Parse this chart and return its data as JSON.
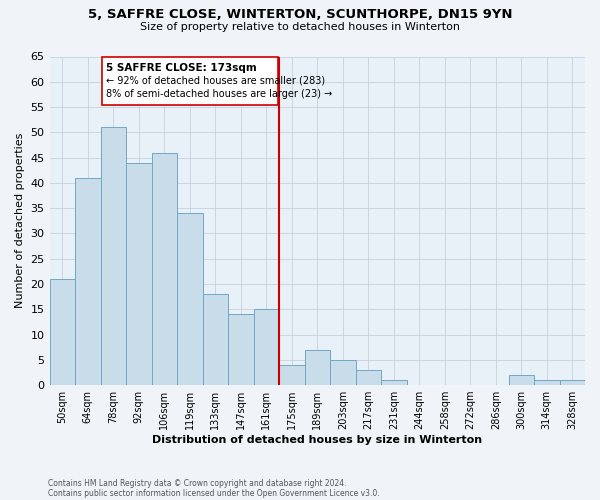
{
  "title": "5, SAFFRE CLOSE, WINTERTON, SCUNTHORPE, DN15 9YN",
  "subtitle": "Size of property relative to detached houses in Winterton",
  "xlabel": "Distribution of detached houses by size in Winterton",
  "ylabel": "Number of detached properties",
  "bar_color": "#c8dcea",
  "bar_edge_color": "#6fa8c8",
  "categories": [
    "50sqm",
    "64sqm",
    "78sqm",
    "92sqm",
    "106sqm",
    "119sqm",
    "133sqm",
    "147sqm",
    "161sqm",
    "175sqm",
    "189sqm",
    "203sqm",
    "217sqm",
    "231sqm",
    "244sqm",
    "258sqm",
    "272sqm",
    "286sqm",
    "300sqm",
    "314sqm",
    "328sqm"
  ],
  "values": [
    21,
    41,
    51,
    44,
    46,
    34,
    18,
    14,
    15,
    4,
    7,
    5,
    3,
    1,
    0,
    0,
    0,
    0,
    2,
    1,
    1
  ],
  "ylim": [
    0,
    65
  ],
  "yticks": [
    0,
    5,
    10,
    15,
    20,
    25,
    30,
    35,
    40,
    45,
    50,
    55,
    60,
    65
  ],
  "ref_line_color": "#cc0000",
  "annotation_title": "5 SAFFRE CLOSE: 173sqm",
  "annotation_line1": "← 92% of detached houses are smaller (283)",
  "annotation_line2": "8% of semi-detached houses are larger (23) →",
  "footnote1": "Contains HM Land Registry data © Crown copyright and database right 2024.",
  "footnote2": "Contains public sector information licensed under the Open Government Licence v3.0.",
  "bg_color": "#f0f4f8",
  "plot_bg_color": "#e8f0f8",
  "grid_color": "#c0ccd8"
}
